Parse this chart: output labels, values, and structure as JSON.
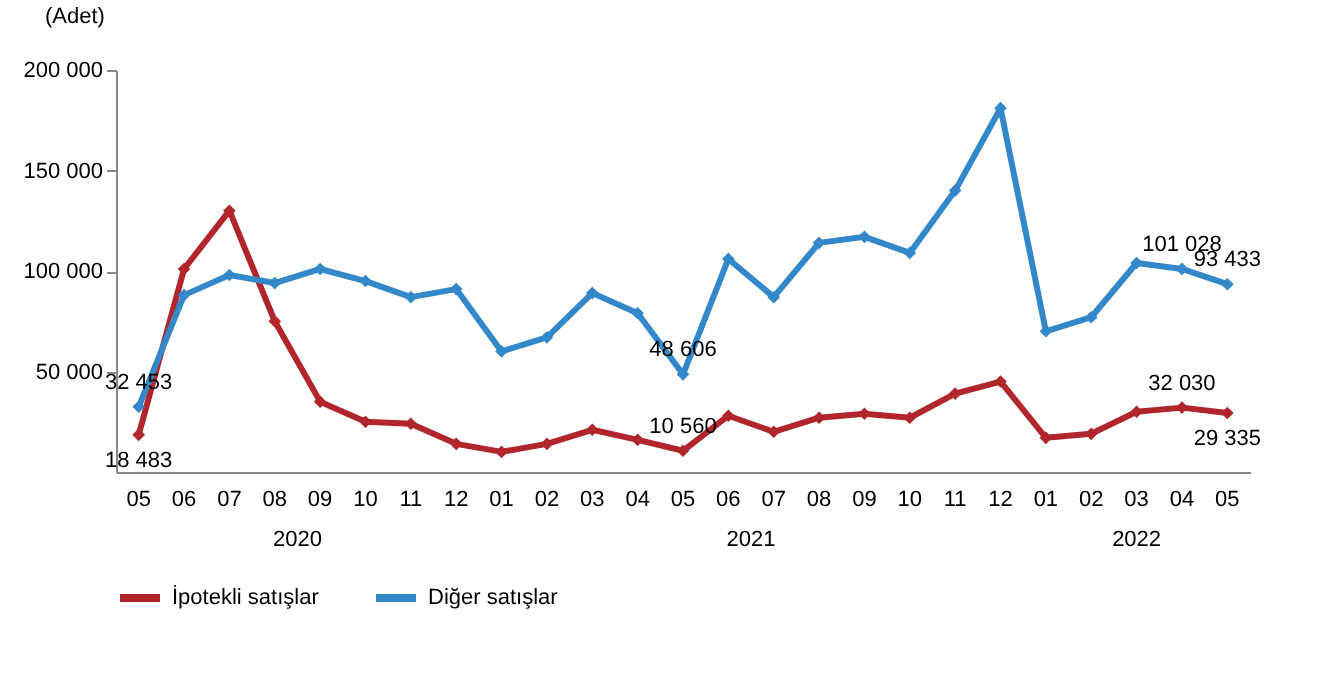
{
  "chart_data": {
    "type": "line",
    "ylabel": "(Adet)",
    "categories": [
      "05",
      "06",
      "07",
      "08",
      "09",
      "10",
      "11",
      "12",
      "01",
      "02",
      "03",
      "04",
      "05",
      "06",
      "07",
      "08",
      "09",
      "10",
      "11",
      "12",
      "01",
      "02",
      "03",
      "04",
      "05"
    ],
    "annotations": [
      "2020",
      "2021",
      "2022"
    ],
    "ylim": [
      0,
      200000
    ],
    "yticks": [
      {
        "value": 50000,
        "label": "50 000"
      },
      {
        "value": 100000,
        "label": "100 000"
      },
      {
        "value": 150000,
        "label": "150 000"
      },
      {
        "value": 200000,
        "label": "200 000"
      }
    ],
    "series": [
      {
        "name": "İpotekli satışlar",
        "color": "#b0262c",
        "values": [
          18483,
          101000,
          130000,
          75000,
          35000,
          25000,
          24000,
          14000,
          10000,
          14000,
          21000,
          16000,
          10560,
          28000,
          20000,
          27000,
          29000,
          27000,
          39000,
          45000,
          17000,
          19000,
          30000,
          32030,
          29335
        ],
        "value_labels": [
          "18 483",
          null,
          null,
          null,
          null,
          null,
          null,
          null,
          null,
          null,
          null,
          null,
          "10 560",
          null,
          null,
          null,
          null,
          null,
          null,
          null,
          null,
          null,
          null,
          "32 030",
          "29 335"
        ]
      },
      {
        "name": "Diğer satışlar",
        "color": "#3288c8",
        "values": [
          32453,
          88000,
          98000,
          94000,
          101000,
          95000,
          87000,
          91000,
          60000,
          67000,
          89000,
          79000,
          48606,
          106000,
          87000,
          114000,
          117000,
          109000,
          140000,
          181000,
          70000,
          77000,
          104000,
          101028,
          93433
        ],
        "value_labels": [
          "32 453",
          null,
          null,
          null,
          null,
          null,
          null,
          null,
          null,
          null,
          null,
          null,
          "48 606",
          null,
          null,
          null,
          null,
          null,
          null,
          null,
          null,
          null,
          null,
          "101 028",
          "93 433"
        ]
      }
    ],
    "marker": "diamond",
    "line_style": "solid",
    "legend": "bottom"
  }
}
